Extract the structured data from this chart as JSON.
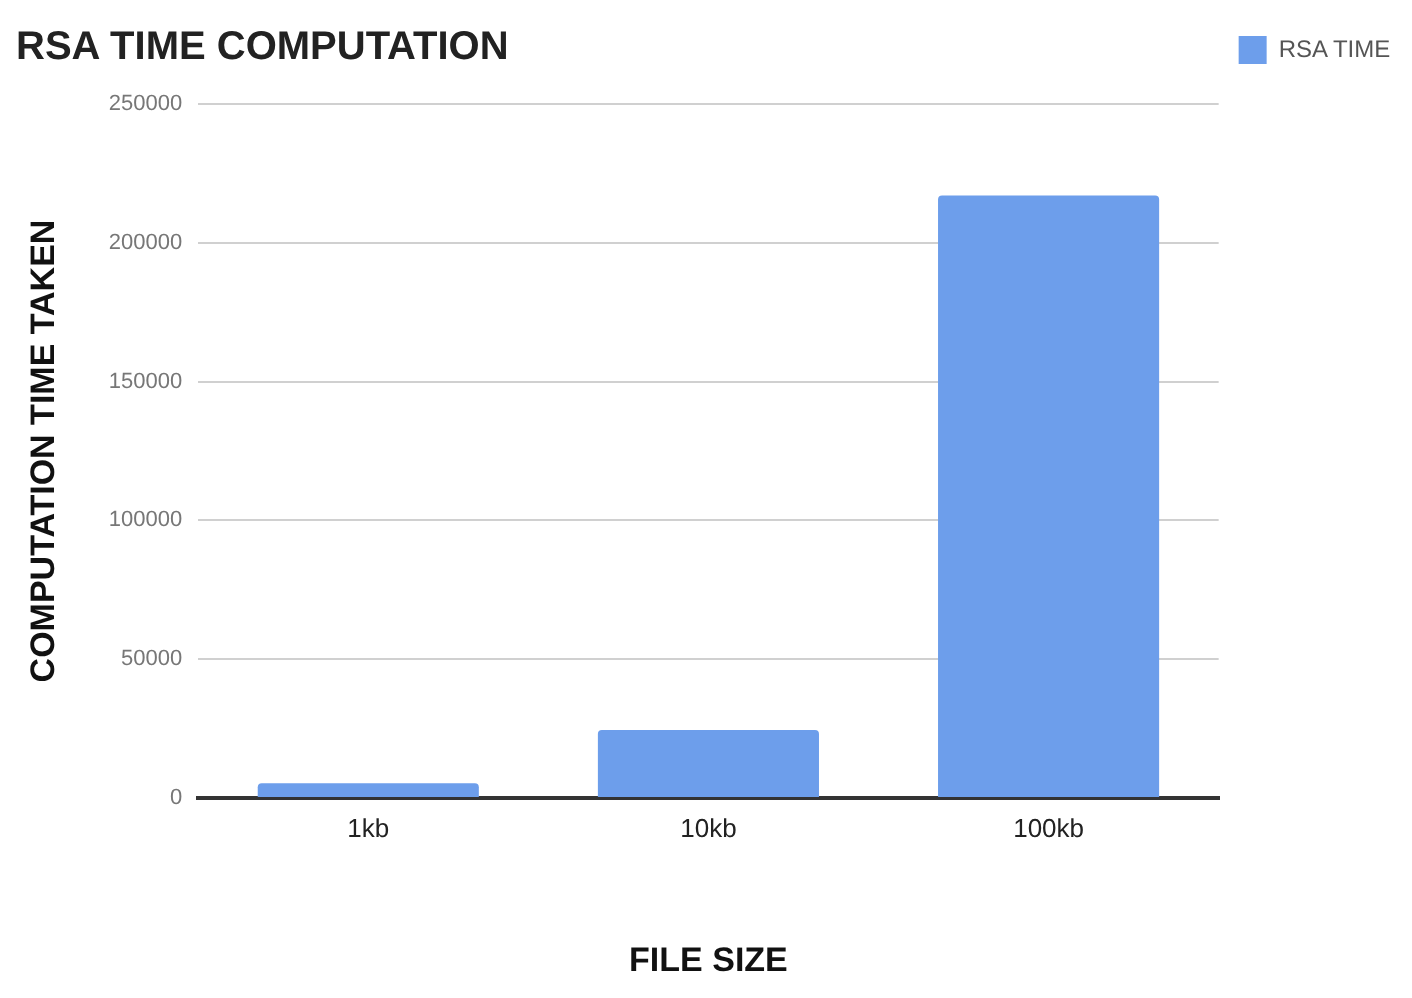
{
  "chart_data": {
    "type": "bar",
    "title": "RSA TIME COMPUTATION",
    "xlabel": "FILE SIZE",
    "ylabel": "COMPUTATION TIME TAKEN",
    "categories": [
      "1kb",
      "10kb",
      "100kb"
    ],
    "series": [
      {
        "name": "RSA TIME",
        "color": "#6d9eeb",
        "values": [
          5300,
          24500,
          217000
        ]
      }
    ],
    "ylim": [
      0,
      250000
    ],
    "yticks": [
      0,
      50000,
      100000,
      150000,
      200000,
      250000
    ],
    "grid": "y",
    "legend": "top right"
  }
}
